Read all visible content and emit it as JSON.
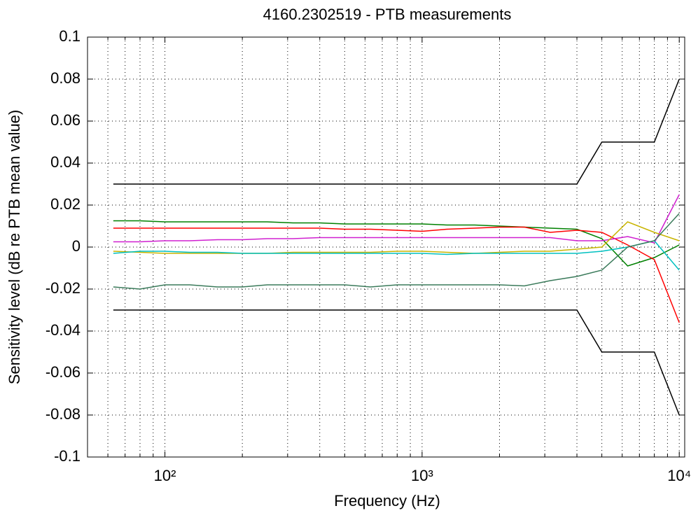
{
  "chart_data": {
    "type": "line",
    "title": "4160.2302519 - PTB measurements",
    "xlabel": "Frequency (Hz)",
    "ylabel": "Sensitivity level (dB re PTB mean value)",
    "xscale": "log",
    "grid": true,
    "xlim": [
      50,
      10500
    ],
    "xticks": [
      {
        "value": 100,
        "label": "10²"
      },
      {
        "value": 1000,
        "label": "10³"
      },
      {
        "value": 10000,
        "label": "10⁴"
      }
    ],
    "xminorticks": [
      60,
      70,
      80,
      90,
      200,
      300,
      400,
      500,
      600,
      700,
      800,
      900,
      2000,
      3000,
      4000,
      5000,
      6000,
      7000,
      8000,
      9000
    ],
    "ylim": [
      -0.1,
      0.1
    ],
    "yticks": [
      -0.1,
      -0.08,
      -0.06,
      -0.04,
      -0.02,
      0,
      0.02,
      0.04,
      0.06,
      0.08,
      0.1
    ],
    "x": [
      63,
      80,
      100,
      125,
      160,
      200,
      250,
      315,
      400,
      500,
      630,
      800,
      1000,
      1250,
      1600,
      2000,
      2500,
      3150,
      4000,
      5000,
      6300,
      8000,
      10000
    ],
    "series": [
      {
        "color": "#000000",
        "values": [
          0.03,
          0.03,
          0.03,
          0.03,
          0.03,
          0.03,
          0.03,
          0.03,
          0.03,
          0.03,
          0.03,
          0.03,
          0.03,
          0.03,
          0.03,
          0.03,
          0.03,
          0.03,
          0.03,
          0.05,
          0.05,
          0.05,
          0.08
        ]
      },
      {
        "color": "#000000",
        "values": [
          -0.03,
          -0.03,
          -0.03,
          -0.03,
          -0.03,
          -0.03,
          -0.03,
          -0.03,
          -0.03,
          -0.03,
          -0.03,
          -0.03,
          -0.03,
          -0.03,
          -0.03,
          -0.03,
          -0.03,
          -0.03,
          -0.03,
          -0.05,
          -0.05,
          -0.05,
          -0.08
        ]
      },
      {
        "color": "#008000",
        "values": [
          0.0125,
          0.0125,
          0.012,
          0.012,
          0.012,
          0.012,
          0.012,
          0.0115,
          0.0115,
          0.011,
          0.011,
          0.011,
          0.011,
          0.0105,
          0.0105,
          0.01,
          0.0095,
          0.009,
          0.0085,
          0.004,
          -0.009,
          -0.005,
          0.001
        ]
      },
      {
        "color": "#ff0000",
        "values": [
          0.009,
          0.009,
          0.009,
          0.009,
          0.009,
          0.009,
          0.009,
          0.009,
          0.009,
          0.0085,
          0.0085,
          0.008,
          0.0075,
          0.0085,
          0.009,
          0.0095,
          0.0095,
          0.007,
          0.008,
          0.007,
          0.001,
          -0.006,
          -0.036
        ]
      },
      {
        "color": "#d020d0",
        "values": [
          0.0025,
          0.0025,
          0.003,
          0.003,
          0.0035,
          0.0035,
          0.004,
          0.004,
          0.0045,
          0.0045,
          0.0045,
          0.0045,
          0.0045,
          0.0045,
          0.0045,
          0.0045,
          0.0045,
          0.0045,
          0.003,
          0.003,
          0.005,
          0.002,
          0.025
        ]
      },
      {
        "color": "#c8b400",
        "values": [
          -0.002,
          -0.0025,
          -0.003,
          -0.003,
          -0.003,
          -0.003,
          -0.003,
          -0.0025,
          -0.0025,
          -0.0025,
          -0.0025,
          -0.002,
          -0.002,
          -0.0025,
          -0.003,
          -0.0025,
          -0.002,
          -0.002,
          -0.001,
          0.0,
          0.012,
          0.007,
          0.003
        ]
      },
      {
        "color": "#00c0c0",
        "values": [
          -0.003,
          -0.002,
          -0.002,
          -0.0025,
          -0.0025,
          -0.003,
          -0.003,
          -0.003,
          -0.003,
          -0.003,
          -0.003,
          -0.003,
          -0.003,
          -0.0035,
          -0.003,
          -0.003,
          -0.003,
          -0.003,
          -0.003,
          -0.002,
          0.0,
          0.003,
          -0.011
        ]
      },
      {
        "color": "#3a7a5a",
        "values": [
          -0.019,
          -0.02,
          -0.018,
          -0.018,
          -0.019,
          -0.019,
          -0.018,
          -0.018,
          -0.018,
          -0.018,
          -0.019,
          -0.018,
          -0.018,
          -0.018,
          -0.018,
          -0.018,
          -0.0185,
          -0.016,
          -0.014,
          -0.011,
          0.0,
          0.003,
          0.016
        ]
      }
    ]
  }
}
